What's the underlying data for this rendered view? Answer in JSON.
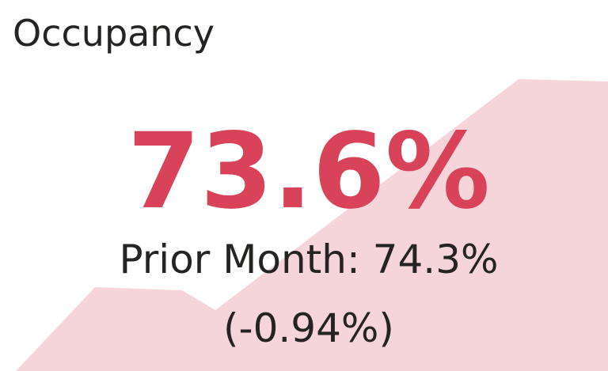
{
  "title": "Occupancy",
  "value": "73.6%",
  "prior": "Prior Month: 74.3%",
  "change": "(-0.94%)"
}
